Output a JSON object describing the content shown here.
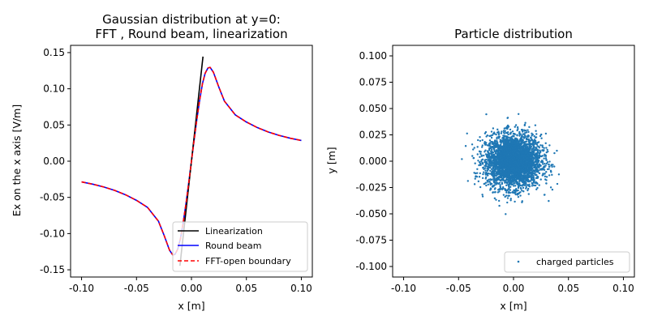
{
  "chart_data": [
    {
      "type": "line",
      "title": "Gaussian distribution at y=0:",
      "subtitle": "FFT , Round beam, linearization",
      "xlabel": "x [m]",
      "ylabel": "Ex on the x axis [V/m]",
      "xlim": [
        -0.11,
        0.11
      ],
      "ylim": [
        -0.16,
        0.16
      ],
      "xticks": [
        "-0.10",
        "-0.05",
        "0.00",
        "0.05",
        "0.10"
      ],
      "yticks": [
        "-0.15",
        "-0.10",
        "-0.05",
        "0.00",
        "0.05",
        "0.10",
        "0.15"
      ],
      "legend_position": "lower-right",
      "series": [
        {
          "name": "Linearization",
          "color": "#000000",
          "style": "solid",
          "x": [
            -0.0105,
            0.0105
          ],
          "y": [
            -0.1445,
            0.1445
          ]
        },
        {
          "name": "Round beam",
          "color": "#0000ff",
          "style": "solid",
          "x": [
            -0.1,
            -0.09,
            -0.08,
            -0.07,
            -0.06,
            -0.05,
            -0.04,
            -0.03,
            -0.025,
            -0.02,
            -0.017,
            -0.015,
            -0.0125,
            -0.01,
            -0.0075,
            -0.005,
            -0.0025,
            0,
            0.0025,
            0.005,
            0.0075,
            0.01,
            0.0125,
            0.015,
            0.017,
            0.02,
            0.025,
            0.03,
            0.04,
            0.05,
            0.06,
            0.07,
            0.08,
            0.09,
            0.1
          ],
          "y": [
            -0.0286,
            -0.0317,
            -0.0355,
            -0.0403,
            -0.0464,
            -0.0541,
            -0.0638,
            -0.083,
            -0.102,
            -0.1228,
            -0.1296,
            -0.1287,
            -0.1216,
            -0.107,
            -0.0845,
            -0.0589,
            -0.0301,
            0,
            0.0301,
            0.0589,
            0.0845,
            0.107,
            0.1216,
            0.1287,
            0.1296,
            0.1228,
            0.102,
            0.083,
            0.0638,
            0.0541,
            0.0464,
            0.0403,
            0.0355,
            0.0317,
            0.0286
          ]
        },
        {
          "name": "FFT-open boundary",
          "color": "#ff0000",
          "style": "dashed",
          "x": [
            -0.1,
            -0.09,
            -0.08,
            -0.07,
            -0.06,
            -0.05,
            -0.04,
            -0.03,
            -0.025,
            -0.02,
            -0.017,
            -0.015,
            -0.0125,
            -0.01,
            -0.0075,
            -0.005,
            -0.0025,
            0,
            0.0025,
            0.005,
            0.0075,
            0.01,
            0.0125,
            0.015,
            0.017,
            0.02,
            0.025,
            0.03,
            0.04,
            0.05,
            0.06,
            0.07,
            0.08,
            0.09,
            0.1
          ],
          "y": [
            -0.0286,
            -0.0317,
            -0.0355,
            -0.0403,
            -0.0464,
            -0.0541,
            -0.0638,
            -0.083,
            -0.102,
            -0.1228,
            -0.1296,
            -0.1287,
            -0.1216,
            -0.107,
            -0.0845,
            -0.0589,
            -0.0301,
            0,
            0.0301,
            0.0589,
            0.0845,
            0.107,
            0.1216,
            0.1287,
            0.1296,
            0.1228,
            0.102,
            0.083,
            0.0638,
            0.0541,
            0.0464,
            0.0403,
            0.0355,
            0.0317,
            0.0286
          ]
        }
      ]
    },
    {
      "type": "scatter",
      "title": "Particle distribution",
      "xlabel": "x [m]",
      "ylabel": "y [m]",
      "xlim": [
        -0.11,
        0.11
      ],
      "ylim": [
        -0.11,
        0.11
      ],
      "xticks": [
        "-0.10",
        "-0.05",
        "0.00",
        "0.05",
        "0.10"
      ],
      "yticks": [
        "-0.100",
        "-0.075",
        "-0.050",
        "-0.025",
        "0.000",
        "0.025",
        "0.050",
        "0.075",
        "0.100"
      ],
      "legend_position": "lower-right",
      "series": [
        {
          "name": "charged particles",
          "color": "#1f77b4",
          "distribution": "gaussian",
          "center": [
            0,
            0
          ],
          "sigma": 0.0125,
          "extent": 0.052
        }
      ]
    }
  ]
}
